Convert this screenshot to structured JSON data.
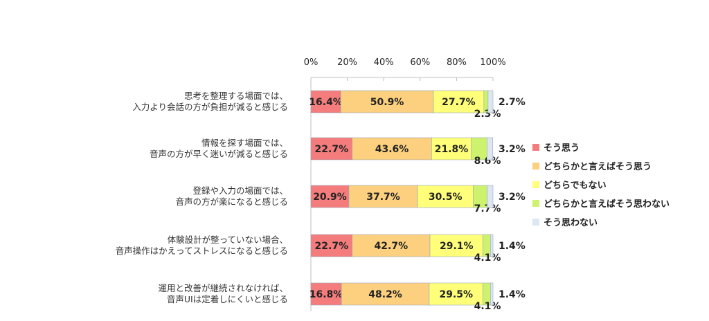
{
  "colors": {
    "series": [
      "#f47c7c",
      "#fcd07e",
      "#ffff7a",
      "#ccf26e",
      "#dde7f4"
    ],
    "bar_border": "#9aa7b8",
    "axis": "#bfbfbf"
  },
  "chart_data": {
    "type": "bar",
    "orientation": "horizontal",
    "stacked": true,
    "xlim": [
      0,
      100
    ],
    "x_ticks": [
      "0%",
      "20%",
      "40%",
      "60%",
      "80%",
      "100%"
    ],
    "grid": false,
    "legend_position": "right",
    "categories": [
      {
        "line1": "思考を整理する場面では、",
        "line2": "入力より会話の方が負担が減ると感じる"
      },
      {
        "line1": "情報を探す場面では、",
        "line2": "音声の方が早く迷いが減ると感じる"
      },
      {
        "line1": "登録や入力の場面では、",
        "line2": "音声の方が楽になると感じる"
      },
      {
        "line1": "体験設計が整っていない場合、",
        "line2": "音声操作はかえってストレスになると感じる"
      },
      {
        "line1": "運用と改善が継続されなければ、",
        "line2": "音声UIは定着しにくいと感じる"
      }
    ],
    "series": [
      {
        "name": "そう思う",
        "values": [
          16.4,
          22.7,
          20.9,
          22.7,
          16.8
        ],
        "labels": [
          "16.4%",
          "22.7%",
          "20.9%",
          "22.7%",
          "16.8%"
        ]
      },
      {
        "name": "どちらかと言えばそう思う",
        "values": [
          50.9,
          43.6,
          37.7,
          42.7,
          48.2
        ],
        "labels": [
          "50.9%",
          "43.6%",
          "37.7%",
          "42.7%",
          "48.2%"
        ]
      },
      {
        "name": "どちらでもない",
        "values": [
          27.7,
          21.8,
          30.5,
          29.1,
          29.5
        ],
        "labels": [
          "27.7%",
          "21.8%",
          "30.5%",
          "29.1%",
          "29.5%"
        ]
      },
      {
        "name": "どちらかと言えばそう思わない",
        "values": [
          2.3,
          8.6,
          7.7,
          4.1,
          4.1
        ],
        "labels": [
          "2.3%",
          "8.6%",
          "7.7%",
          "4.1%",
          "4.1%"
        ]
      },
      {
        "name": "そう思わない",
        "values": [
          2.7,
          3.2,
          3.2,
          1.4,
          1.4
        ],
        "labels": [
          "2.7%",
          "3.2%",
          "3.2%",
          "1.4%",
          "1.4%"
        ]
      }
    ]
  }
}
